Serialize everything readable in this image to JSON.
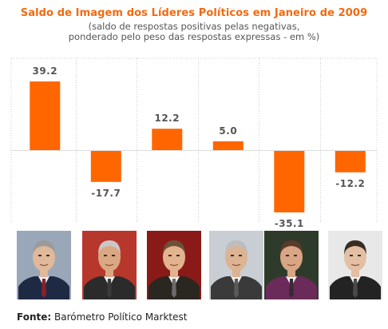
{
  "title": "Saldo de Imagem dos Líderes Políticos em Janeiro de 2009",
  "subtitle_line1": "(saldo de respostas positivas pelas negativas,",
  "subtitle_line2": "ponderado pelo peso das respostas expressas - em %)",
  "source_label": "Fonte:",
  "source_text": "Barómetro Político Marktest",
  "colors": {
    "bar": "#ff6600",
    "title": "#f26a10",
    "value_label": "#555555",
    "grid": "#cccccc",
    "baseline": "#dddddd"
  },
  "chart_data": {
    "type": "bar",
    "values": [
      39.2,
      -17.7,
      12.2,
      5.0,
      -35.1,
      -12.2
    ],
    "value_labels": [
      "39.2",
      "-17.7",
      "12.2",
      "5.0",
      "-35.1",
      "-12.2"
    ],
    "grid": "vertical dotted separators",
    "ylim": [
      -35.1,
      39.2
    ]
  },
  "portraits": [
    {
      "icon": "portrait-icon",
      "suit": "#1e2a44",
      "bg": "#9aa7b8",
      "skin": "#e0b89a",
      "hair": "#9b9b9b",
      "tie": "#8a1f2b"
    },
    {
      "icon": "portrait-icon",
      "suit": "#2b2b2b",
      "bg": "#b8372c",
      "skin": "#d9a882",
      "hair": "#c8c8c8",
      "tie": "#3a3a3a"
    },
    {
      "icon": "portrait-icon",
      "suit": "#2a2620",
      "bg": "#8a1a18",
      "skin": "#e2b38e",
      "hair": "#6b5138",
      "tie": "#6a6a6a"
    },
    {
      "icon": "portrait-icon",
      "suit": "#3a3a3a",
      "bg": "#c9ced4",
      "skin": "#dcb493",
      "hair": "#bdbdbd",
      "tie": "#5a5a5a"
    },
    {
      "icon": "portrait-icon",
      "suit": "#6a2b5a",
      "bg": "#2e3b2a",
      "skin": "#d8a585",
      "hair": "#5a3b2a",
      "tie": "#3a2a35"
    },
    {
      "icon": "portrait-icon",
      "suit": "#232323",
      "bg": "#e8e8e8",
      "skin": "#e3bfa3",
      "hair": "#3a2d22",
      "tie": "#4a4a4a"
    }
  ]
}
